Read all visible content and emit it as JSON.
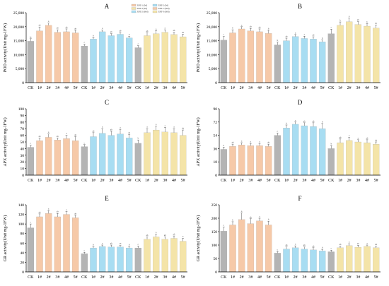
{
  "colors": {
    "ck": "#b4b4b4",
    "group1": "#f6c9a8",
    "group2": "#a8ddf2",
    "group3": "#f4e4a8",
    "axis": "#000000",
    "errbar": "#333333"
  },
  "legend": {
    "items": [
      {
        "label": "ZBT-1 (0d)",
        "color": "#f6c9a8"
      },
      {
        "label": "ZBT-2 (0d)",
        "color": "#a8ddf2"
      },
      {
        "label": "ZBT-3 (0d)",
        "color": "#f4e4a8"
      },
      {
        "label": "ZBT-1 (60d)",
        "color": "#f6c9a8"
      },
      {
        "label": "ZBT-2 (60d)",
        "color": "#a8ddf2"
      },
      {
        "label": "ZBT-3 (60d)",
        "color": "#f4e4a8"
      }
    ]
  },
  "chart_data": [
    {
      "type": "bar",
      "title": "A",
      "ylabel": "POD activity(Unit mg-1FW)",
      "ylim": [
        0,
        25000
      ],
      "yticks": [
        "0",
        "5,000",
        "10,000",
        "15,000",
        "20,000",
        "25,000"
      ],
      "categories": [
        "CK",
        "1#",
        "2#",
        "3#",
        "4#",
        "5#"
      ],
      "groups": [
        {
          "values": [
            14800,
            18500,
            20500,
            18000,
            18200,
            17800
          ],
          "errors": [
            900,
            1400,
            800,
            900,
            1000,
            900
          ],
          "lower": [
            14800,
            15800,
            17200,
            16500,
            16200,
            16000
          ]
        },
        {
          "values": [
            13100,
            15600,
            18200,
            16800,
            17300,
            16000
          ],
          "errors": [
            600,
            500,
            600,
            700,
            600,
            500
          ],
          "lower": [
            13100,
            15400,
            16300,
            16200,
            15800,
            15600
          ]
        },
        {
          "values": [
            12500,
            16800,
            17500,
            18000,
            17200,
            16400
          ],
          "errors": [
            700,
            1000,
            1100,
            900,
            800,
            900
          ],
          "lower": [
            12500,
            14600,
            15800,
            15400,
            15200,
            15000
          ]
        }
      ],
      "sig": [
        [
          "bc",
          "ab",
          "a",
          "ab",
          "ab",
          "ab"
        ],
        [
          "c",
          "b",
          "a",
          "ab",
          "ab",
          "b"
        ],
        [
          "c",
          "ab",
          "a",
          "a",
          "ab",
          "ab"
        ]
      ]
    },
    {
      "type": "bar",
      "title": "B",
      "ylabel": "POD activity(Unit mg-1FW)",
      "ylim": [
        0,
        25000
      ],
      "yticks": [
        "0",
        "5,000",
        "10,000",
        "15,000",
        "20,000",
        "25,000"
      ],
      "categories": [
        "CK",
        "1#",
        "2#",
        "3#",
        "4#",
        "5#"
      ],
      "groups": [
        {
          "values": [
            15200,
            17800,
            19200,
            18500,
            18200,
            17600
          ],
          "errors": [
            1300,
            1100,
            800,
            900,
            1000,
            1100
          ],
          "lower": [
            15200,
            16000,
            18200,
            17500,
            17200,
            16200
          ]
        },
        {
          "values": [
            13500,
            15000,
            16500,
            15800,
            15600,
            14600
          ],
          "errors": [
            1000,
            900,
            700,
            800,
            800,
            700
          ],
          "lower": [
            13500,
            13500,
            16000,
            15200,
            14600,
            13800
          ]
        },
        {
          "values": [
            17500,
            20500,
            21800,
            20800,
            20200,
            19500
          ],
          "errors": [
            1600,
            1200,
            1300,
            1000,
            900,
            1100
          ],
          "lower": [
            17500,
            19800,
            20500,
            19500,
            19000,
            18500
          ]
        }
      ],
      "sig": [
        [
          "c",
          "b",
          "a",
          "ab",
          "ab",
          "b"
        ],
        [
          "b",
          "ab",
          "a",
          "a",
          "ab",
          "b"
        ],
        [
          "c",
          "b",
          "a",
          "ab",
          "b",
          "bc"
        ]
      ]
    },
    {
      "type": "bar",
      "title": "C",
      "ylabel": "APX activity(Unit mg-1FW)",
      "ylim": [
        0,
        100
      ],
      "yticks": [
        "0",
        "10",
        "20",
        "30",
        "40",
        "50",
        "60",
        "70",
        "80",
        "90",
        "100"
      ],
      "categories": [
        "CK",
        "1#",
        "2#",
        "3#",
        "4#",
        "5#"
      ],
      "groups": [
        {
          "values": [
            42,
            52,
            57,
            53,
            55,
            52
          ],
          "errors": [
            3,
            4,
            5,
            3,
            5,
            6
          ],
          "lower": [
            42,
            47,
            52,
            51,
            47,
            46
          ]
        },
        {
          "values": [
            43,
            58,
            63,
            60,
            62,
            56
          ],
          "errors": [
            3,
            6,
            7,
            6,
            7,
            5
          ],
          "lower": [
            43,
            54,
            55,
            52,
            54,
            53
          ]
        },
        {
          "values": [
            48,
            64,
            68,
            65,
            64,
            60
          ],
          "errors": [
            5,
            6,
            6,
            7,
            6,
            8
          ],
          "lower": [
            48,
            59,
            61,
            60,
            57,
            52
          ]
        }
      ],
      "sig": [
        [
          "c",
          "ab",
          "a",
          "ab",
          "a",
          "ab"
        ],
        [
          "c",
          "ab",
          "a",
          "ab",
          "a",
          "ab"
        ],
        [
          "b",
          "a",
          "a",
          "a",
          "a",
          "ab"
        ]
      ]
    },
    {
      "type": "bar",
      "title": "D",
      "ylabel": "APX activity(Unit mg-1FW)",
      "ylim": [
        0,
        90
      ],
      "yticks": [
        "0",
        "18",
        "36",
        "54",
        "72",
        "90"
      ],
      "categories": [
        "CK",
        "1#",
        "2#",
        "3#",
        "4#",
        "5#"
      ],
      "groups": [
        {
          "values": [
            35,
            39,
            41,
            40,
            40,
            39
          ],
          "errors": [
            3,
            3,
            3,
            3,
            3,
            3
          ],
          "lower": [
            35,
            37,
            38,
            37,
            38,
            37
          ]
        },
        {
          "values": [
            54,
            64,
            69,
            67,
            66,
            63
          ],
          "errors": [
            3,
            4,
            3,
            4,
            5,
            7
          ],
          "lower": [
            54,
            58,
            65,
            63,
            61,
            55
          ]
        },
        {
          "values": [
            36,
            44,
            47,
            45,
            44,
            42
          ],
          "errors": [
            4,
            5,
            4,
            3,
            4,
            3
          ],
          "lower": [
            36,
            40,
            42,
            43,
            41,
            40
          ]
        }
      ],
      "sig": [
        [
          "b",
          "ab",
          "a",
          "a",
          "a",
          "ab"
        ],
        [
          "c",
          "b",
          "a",
          "ab",
          "ab",
          "b"
        ],
        [
          "b",
          "ab",
          "a",
          "a",
          "ab",
          "ab"
        ]
      ]
    },
    {
      "type": "bar",
      "title": "E",
      "ylabel": "GR activity(Unit mg-1FW)",
      "ylim": [
        0,
        140
      ],
      "yticks": [
        "0",
        "20",
        "40",
        "60",
        "80",
        "100",
        "120",
        "140"
      ],
      "categories": [
        "CK",
        "1#",
        "2#",
        "3#",
        "4#",
        "5#"
      ],
      "groups": [
        {
          "values": [
            92,
            115,
            122,
            115,
            120,
            113
          ],
          "errors": [
            8,
            6,
            6,
            7,
            6,
            5
          ],
          "lower": [
            92,
            104,
            110,
            107,
            108,
            105
          ]
        },
        {
          "values": [
            38,
            50,
            53,
            52,
            52,
            50
          ],
          "errors": [
            3,
            3,
            3,
            4,
            3,
            3
          ],
          "lower": [
            38,
            47,
            50,
            48,
            49,
            47
          ]
        },
        {
          "values": [
            50,
            68,
            73,
            68,
            70,
            64
          ],
          "errors": [
            4,
            5,
            6,
            5,
            5,
            6
          ],
          "lower": [
            50,
            62,
            65,
            60,
            61,
            57
          ]
        }
      ],
      "sig": [
        [
          "c",
          "ab",
          "a",
          "ab",
          "a",
          "ab"
        ],
        [
          "c",
          "b",
          "a",
          "ab",
          "ab",
          "b"
        ],
        [
          "c",
          "ab",
          "a",
          "ab",
          "ab",
          "b"
        ]
      ]
    },
    {
      "type": "bar",
      "title": "F",
      "ylabel": "GR activity(Unit mg-1FW)",
      "ylim": [
        0,
        250
      ],
      "yticks": [
        "0",
        "50",
        "100",
        "150",
        "200",
        "250"
      ],
      "categories": [
        "CK",
        "1#",
        "2#",
        "3#",
        "4#",
        "5#"
      ],
      "groups": [
        {
          "values": [
            152,
            175,
            195,
            180,
            190,
            175
          ],
          "errors": [
            15,
            12,
            25,
            18,
            10,
            14
          ],
          "lower": [
            152,
            162,
            170,
            165,
            170,
            160
          ]
        },
        {
          "values": [
            70,
            85,
            90,
            85,
            82,
            78
          ],
          "errors": [
            6,
            8,
            7,
            8,
            8,
            6
          ],
          "lower": [
            70,
            75,
            80,
            74,
            72,
            76
          ]
        },
        {
          "values": [
            75,
            90,
            98,
            92,
            95,
            90
          ],
          "errors": [
            6,
            6,
            7,
            7,
            5,
            6
          ],
          "lower": [
            75,
            85,
            90,
            86,
            88,
            86
          ]
        }
      ],
      "sig": [
        [
          "c",
          "b",
          "a",
          "ab",
          "a",
          "b"
        ],
        [
          "c",
          "ab",
          "a",
          "ab",
          "ab",
          "b"
        ],
        [
          "c",
          "ab",
          "a",
          "ab",
          "a",
          "ab"
        ]
      ]
    }
  ]
}
